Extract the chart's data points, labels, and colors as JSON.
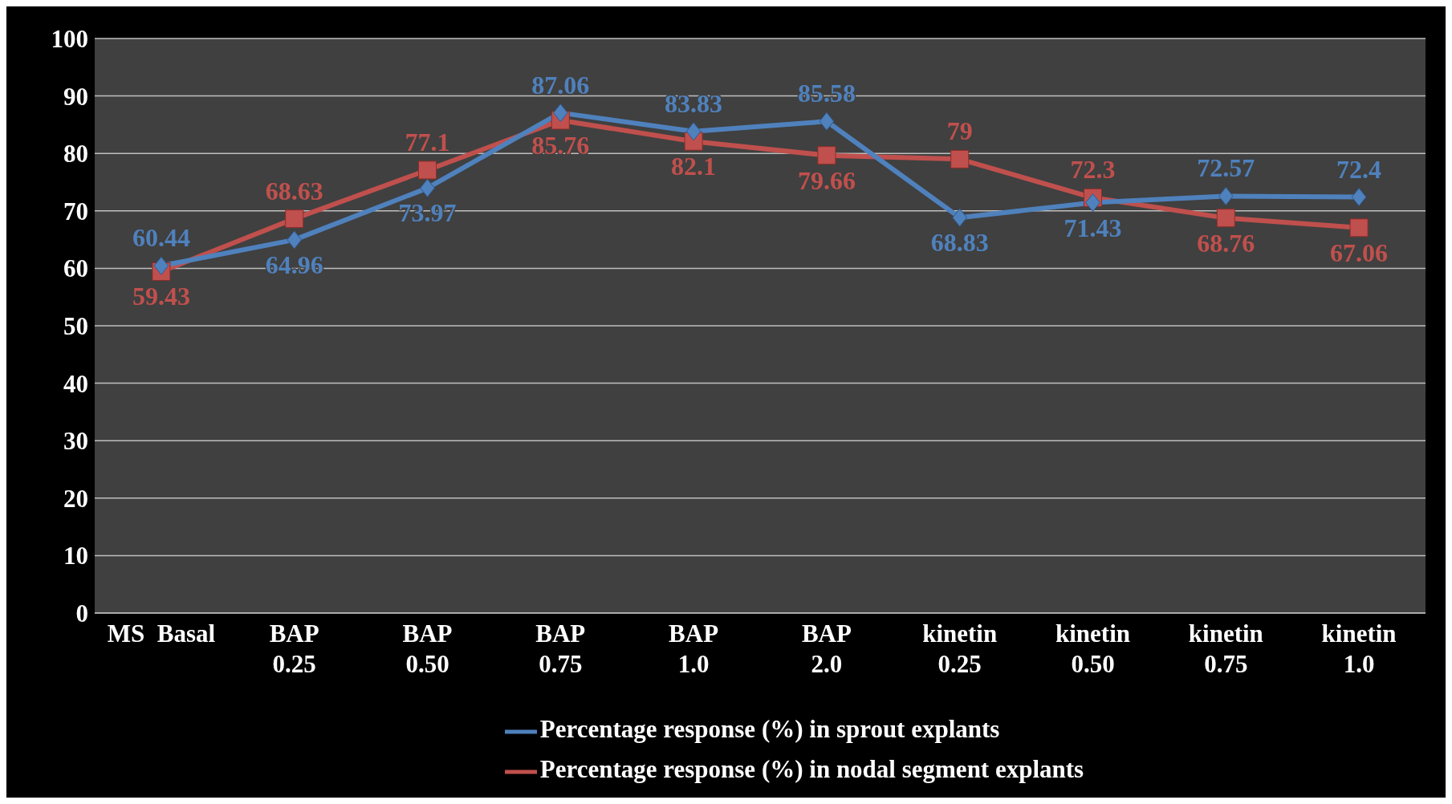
{
  "chart_data": {
    "type": "line",
    "categories": [
      "MS  Basal",
      "BAP\n0.25",
      "BAP\n0.50",
      "BAP\n0.75",
      "BAP\n1.0",
      "BAP\n2.0",
      "kinetin\n0.25",
      "kinetin\n0.50",
      "kinetin\n0.75",
      "kinetin\n1.0"
    ],
    "series": [
      {
        "name": "Percentage response (%) in sprout explants",
        "color": "#4f81bd",
        "marker": "diamond",
        "values": [
          60.44,
          64.96,
          73.97,
          87.06,
          83.83,
          85.58,
          68.83,
          71.43,
          72.57,
          72.4
        ]
      },
      {
        "name": "Percentage response (%) in nodal segment explants",
        "color": "#c0504d",
        "marker": "square",
        "values": [
          59.43,
          68.63,
          77.1,
          85.76,
          82.1,
          79.66,
          79,
          72.3,
          68.76,
          67.06
        ]
      }
    ],
    "ylim": [
      0,
      100
    ],
    "yticks": [
      0,
      10,
      20,
      30,
      40,
      50,
      60,
      70,
      80,
      90,
      100
    ],
    "grid": "y",
    "legend": "bottom",
    "data_labels": true,
    "line_style": "solid"
  }
}
